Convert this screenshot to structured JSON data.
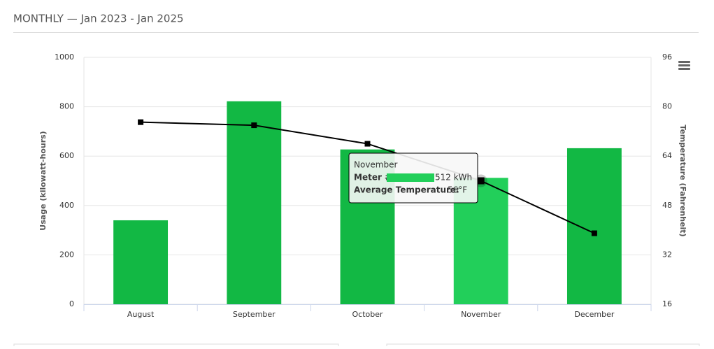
{
  "header": {
    "title": "MONTHLY — Jan 2023 - Jan 2025"
  },
  "chart_data": {
    "type": "bar",
    "categories": [
      "August",
      "September",
      "October",
      "November",
      "December"
    ],
    "y_label": "Usage (kilowatt-hours)",
    "y2_label": "Temperature (Fahrenheit)",
    "ylim": [
      0,
      1000
    ],
    "yticks": [
      0,
      200,
      400,
      600,
      800,
      1000
    ],
    "y2lim": [
      16,
      96
    ],
    "y2ticks": [
      16,
      32,
      48,
      64,
      80,
      96
    ],
    "grid": true,
    "series": [
      {
        "name": "Meter #",
        "type": "bar",
        "color": "#12b844",
        "highlight_color": "#22cf5a",
        "values": [
          340,
          822,
          627,
          512,
          632
        ]
      },
      {
        "name": "Average Temperature",
        "type": "line",
        "axis": "y2",
        "color": "#000000",
        "values": [
          75,
          74,
          68,
          56,
          39
        ]
      }
    ],
    "tooltip": {
      "index": 3,
      "title": "November",
      "series_label": "Meter #",
      "value_label": "512 kWh",
      "temp_label": "Average Temperature:",
      "temp_value": "56°F"
    }
  }
}
